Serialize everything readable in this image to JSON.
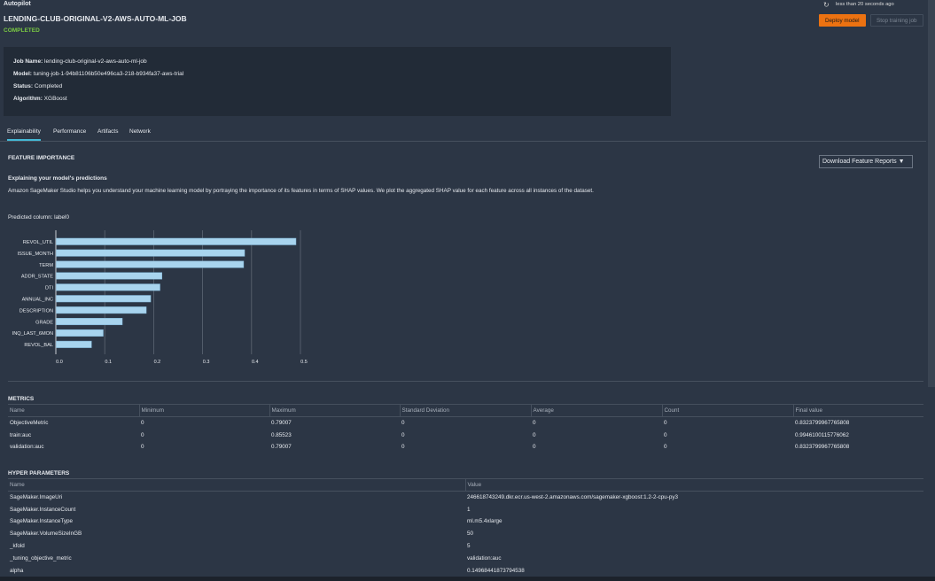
{
  "header": {
    "breadcrumb": "Autopilot",
    "title": "LENDING-CLUB-ORIGINAL-V2-AWS-AUTO-ML-JOB",
    "status": "COMPLETED",
    "updated": "less than 20 seconds ago",
    "deploy_label": "Deploy model",
    "stop_label": "Stop training job"
  },
  "info": {
    "job_name_label": "Job Name:",
    "job_name": "lending-club-original-v2-aws-auto-ml-job",
    "model_label": "Model:",
    "model": "tuning-job-1-94b81106b50e496ca3-218-b934fa37-aws-trial",
    "status_label": "Status:",
    "status": "Completed",
    "algorithm_label": "Algorithm:",
    "algorithm": "XGBoost"
  },
  "tabs": [
    "Explainability",
    "Performance",
    "Artifacts",
    "Network"
  ],
  "feature": {
    "heading": "FEATURE IMPORTANCE",
    "download_label": "Download Feature Reports ▼",
    "subheading": "Explaining your model's predictions",
    "description": "Amazon SageMaker Studio helps you understand your machine learning model by portraying the importance of its features in terms of SHAP values. We plot the aggregated SHAP value for each feature across all instances of the dataset.",
    "predicted": "Predicted column: label0"
  },
  "chart_data": {
    "type": "bar",
    "orientation": "horizontal",
    "categories": [
      "REVOL_UTIL",
      "ISSUE_MONTH",
      "TERM",
      "ADDR_STATE",
      "DTI",
      "ANNUAL_INC",
      "DESCRIPTION",
      "GRADE",
      "INQ_LAST_6MON",
      "REVOL_BAL"
    ],
    "values": [
      0.49,
      0.385,
      0.383,
      0.216,
      0.212,
      0.193,
      0.184,
      0.135,
      0.096,
      0.072
    ],
    "xlim": [
      0,
      0.5
    ],
    "xticks": [
      "0.0",
      "0.1",
      "0.2",
      "0.3",
      "0.4",
      "0.5"
    ],
    "grid": true,
    "color": "#a8d4ee"
  },
  "metrics": {
    "heading": "METRICS",
    "columns": [
      "Name",
      "Minimum",
      "Maximum",
      "Standard Deviation",
      "Average",
      "Count",
      "Final value"
    ],
    "rows": [
      [
        "ObjectiveMetric",
        "0",
        "0.79007",
        "0",
        "0",
        "0",
        "0.8323799967765808"
      ],
      [
        "train:auc",
        "0",
        "0.85523",
        "0",
        "0",
        "0",
        "0.9946100115776062"
      ],
      [
        "validation:auc",
        "0",
        "0.79007",
        "0",
        "0",
        "0",
        "0.8323799967765808"
      ]
    ]
  },
  "hyper": {
    "heading": "HYPER PARAMETERS",
    "columns": [
      "Name",
      "Value"
    ],
    "rows": [
      [
        "SageMaker.ImageUri",
        "246618743249.dkr.ecr.us-west-2.amazonaws.com/sagemaker-xgboost:1.2-2-cpu-py3"
      ],
      [
        "SageMaker.InstanceCount",
        "1"
      ],
      [
        "SageMaker.InstanceType",
        "ml.m5.4xlarge"
      ],
      [
        "SageMaker.VolumeSizeInGB",
        "50"
      ],
      [
        "_kfold",
        "5"
      ],
      [
        "_tuning_objective_metric",
        "validation:auc"
      ],
      [
        "alpha",
        "0.14968441873794538"
      ]
    ]
  }
}
